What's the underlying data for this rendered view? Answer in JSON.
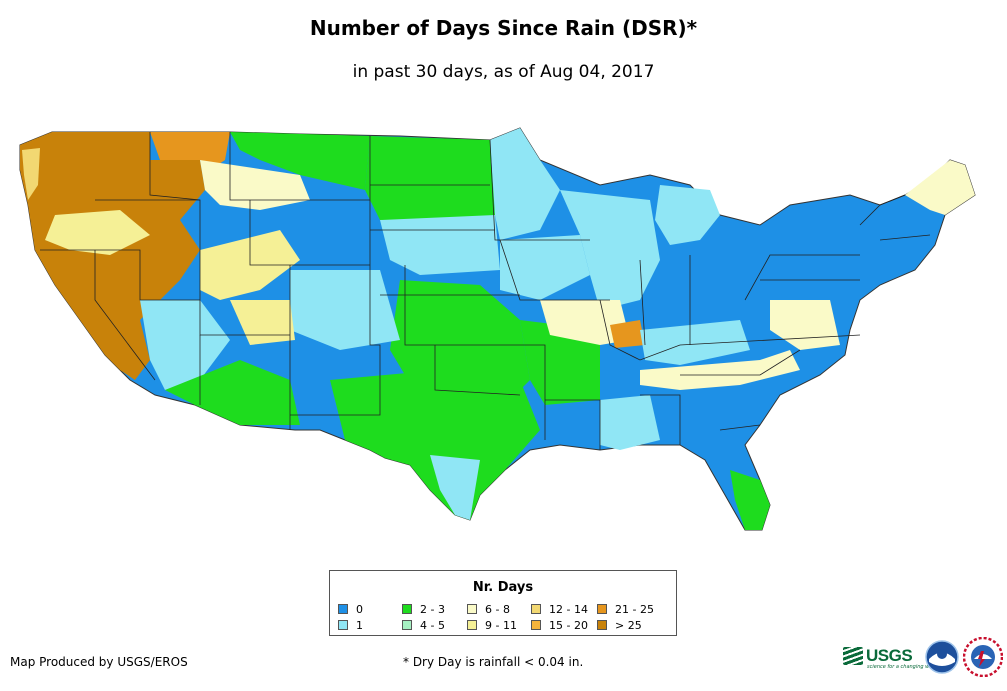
{
  "title": "Number of Days Since Rain (DSR)*",
  "subtitle": "in past 30 days, as of Aug 04, 2017",
  "legend": {
    "title": "Nr. Days",
    "items": [
      {
        "label": "0",
        "color": "#1e90e6"
      },
      {
        "label": "1",
        "color": "#90e6f5"
      },
      {
        "label": "2 - 3",
        "color": "#1edc1e"
      },
      {
        "label": "4 - 5",
        "color": "#a6f0c2"
      },
      {
        "label": "6 - 8",
        "color": "#fafac8"
      },
      {
        "label": "9 - 11",
        "color": "#f5f096"
      },
      {
        "label": "12 - 14",
        "color": "#f2d872"
      },
      {
        "label": "15 - 20",
        "color": "#f5b43c"
      },
      {
        "label": "21 - 25",
        "color": "#e6961e"
      },
      {
        "label": "> 25",
        "color": "#c8820a"
      }
    ]
  },
  "footer": {
    "credit": "Map Produced by USGS/EROS",
    "footnote": "* Dry Day is rainfall < 0.04 in."
  },
  "logos": {
    "usgs_text": "USGS",
    "usgs_tagline": "science for a changing world"
  }
}
